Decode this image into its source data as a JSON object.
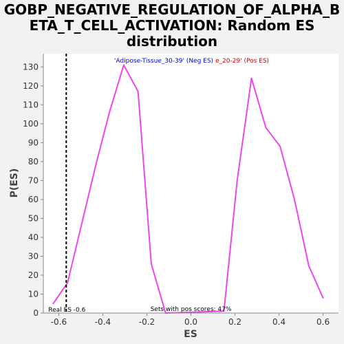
{
  "chart_data": {
    "type": "line",
    "title_lines": [
      "GOBP_NEGATIVE_REGULATION_OF_ALPHA_B",
      "ETA_T_CELL_ACTIVATION: Random ES",
      "distribution"
    ],
    "xlabel": "ES",
    "ylabel": "P(ES)",
    "xlim": [
      -0.67,
      0.67
    ],
    "ylim": [
      0,
      137
    ],
    "xticks": [
      -0.6,
      -0.4,
      -0.2,
      0.0,
      0.2,
      0.4,
      0.6
    ],
    "xtick_labels": [
      "-0.6",
      "-0.4",
      "-0.2",
      "0.0",
      "0.2",
      "0.4",
      "0.6"
    ],
    "yticks": [
      0,
      10,
      20,
      30,
      40,
      50,
      60,
      70,
      80,
      90,
      100,
      110,
      120,
      130
    ],
    "ytick_labels": [
      "0",
      "10",
      "20",
      "30",
      "40",
      "50",
      "60",
      "70",
      "80",
      "90",
      "100",
      "110",
      "120",
      "130"
    ],
    "series": [
      {
        "color": "#ee44ee",
        "x": [
          -0.625,
          -0.56,
          -0.43,
          -0.37,
          -0.305,
          -0.24,
          -0.18,
          -0.115,
          0.15,
          0.21,
          0.275,
          0.34,
          0.405,
          0.47,
          0.535,
          0.6
        ],
        "y": [
          5,
          16,
          79,
          106,
          131,
          117,
          26,
          0,
          1,
          70,
          124,
          98,
          88,
          60,
          25,
          8
        ]
      }
    ],
    "real_es": {
      "x": -0.566,
      "label": "Real ES -0.6"
    },
    "legend": {
      "placement": "top-center",
      "neg_label": "'Adipose-Tissue_30-39' (Neg ES)",
      "pos_label": "e_20-29' (Pos ES)",
      "neg_color": "#0000cc",
      "pos_color": "#cc0000"
    },
    "annotation": "Sets with pos scores: 47%",
    "grid": false,
    "plot_background": "#ffffff"
  }
}
